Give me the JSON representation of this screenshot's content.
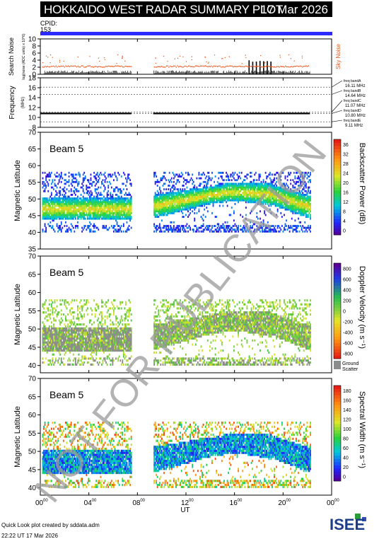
{
  "header": {
    "title": "HOKKAIDO WEST RADAR SUMMARY PLOT",
    "date": "17 Mar 2026",
    "cpid_label": "CPID:",
    "cpid_value": "153"
  },
  "footer": {
    "created_by": "Quick Look plot created by sddata.adm",
    "timestamp": "22:22 UT 17 Mar 2026",
    "logo_text": "ISEE"
  },
  "watermark": "NOT FOR PUBLICATION",
  "chart_data": [
    {
      "type": "line",
      "id": "noise",
      "ylabel": "Search Noise",
      "ylabel_sub": "log(noise (ADC units) x 10^6)",
      "right_label": "Sky Noise",
      "yticks": [
        0,
        2,
        4,
        6,
        8,
        10
      ],
      "ylim": [
        0,
        10
      ],
      "series": [
        {
          "name": "Sky Noise",
          "color": "#e8561a",
          "x": [
            0.2,
            1,
            2,
            3,
            4,
            5,
            6,
            7,
            7.5,
            9.3,
            10,
            11,
            12,
            13,
            14,
            15,
            16,
            17,
            18,
            19,
            20,
            21,
            22
          ],
          "y": [
            2.2,
            2.3,
            2.2,
            2.3,
            2.2,
            2.3,
            2.2,
            2.3,
            2.2,
            2.4,
            2.3,
            2.3,
            2.2,
            2.3,
            2.2,
            2.3,
            2.2,
            2.3,
            2.4,
            2.2,
            2.3,
            2.3,
            2.4
          ]
        }
      ]
    },
    {
      "type": "line",
      "id": "frequency",
      "ylabel": "Frequency",
      "ylabel_sub": "(MHz)",
      "yticks": [
        8,
        10,
        12,
        14,
        16,
        18
      ],
      "ylim": [
        8,
        18
      ],
      "freq_bands": [
        {
          "name": "freq bandA",
          "mhz": "16.11 MHz",
          "value": 16.11
        },
        {
          "name": "freq bandB",
          "mhz": "14.64 MHz",
          "value": 14.64
        },
        {
          "name": "freq bandC",
          "mhz": "11.07 MHz",
          "value": 11.07
        },
        {
          "name": "freq bandD",
          "mhz": "10.80 MHz",
          "value": 10.8
        },
        {
          "name": "freq bandE",
          "mhz": "9.11 MHz",
          "value": 9.11
        }
      ],
      "series": [
        {
          "name": "operating",
          "value": 10.8
        }
      ]
    },
    {
      "type": "heatmap",
      "id": "power",
      "label": "Beam 5",
      "ylabel": "Magnetic Latitude",
      "yticks": [
        35,
        40,
        45,
        50,
        55,
        60,
        65,
        70
      ],
      "ylim": [
        35,
        70
      ],
      "colorbar_label": "Backscatter Power (dB)",
      "colorbar_ticks": [
        "0",
        "4",
        "8",
        "12",
        "16",
        "20",
        "24",
        "28",
        "32",
        "36"
      ],
      "colorbar_range": [
        0,
        38
      ]
    },
    {
      "type": "heatmap",
      "id": "velocity",
      "label": "Beam 5",
      "ylabel": "Magnetic Latitude",
      "yticks": [
        40,
        45,
        50,
        55,
        60,
        65,
        70
      ],
      "ylim": [
        38,
        70
      ],
      "colorbar_label": "Doppler Velocity (m s⁻¹)",
      "colorbar_ticks": [
        "800",
        "600",
        "400",
        "200",
        "0",
        "-200",
        "-400",
        "-600",
        "-800"
      ],
      "colorbar_range": [
        -900,
        900
      ],
      "ground_scatter_label": "Ground Scatter"
    },
    {
      "type": "heatmap",
      "id": "width",
      "label": "Beam 5",
      "ylabel": "Magnetic Latitude",
      "yticks": [
        40,
        45,
        50,
        55,
        60,
        65,
        70
      ],
      "ylim": [
        38,
        70
      ],
      "colorbar_label": "Spectral Width (m s⁻¹)",
      "colorbar_ticks": [
        "0",
        "20",
        "40",
        "60",
        "80",
        "100",
        "120",
        "140",
        "160",
        "180"
      ],
      "colorbar_range": [
        0,
        190
      ]
    }
  ],
  "x_axis": {
    "xlabel": "UT",
    "xlim": [
      0,
      24
    ],
    "ticks": [
      {
        "value": 0,
        "label": "00",
        "sup": "00"
      },
      {
        "value": 4,
        "label": "04",
        "sup": "00"
      },
      {
        "value": 8,
        "label": "08",
        "sup": "00"
      },
      {
        "value": 12,
        "label": "12",
        "sup": "00"
      },
      {
        "value": 16,
        "label": "16",
        "sup": "00"
      },
      {
        "value": 20,
        "label": "20",
        "sup": "00"
      },
      {
        "value": 24,
        "label": "00",
        "sup": "00"
      }
    ],
    "data_gaps": [
      [
        7.5,
        9.3
      ],
      [
        22.2,
        24
      ]
    ]
  }
}
